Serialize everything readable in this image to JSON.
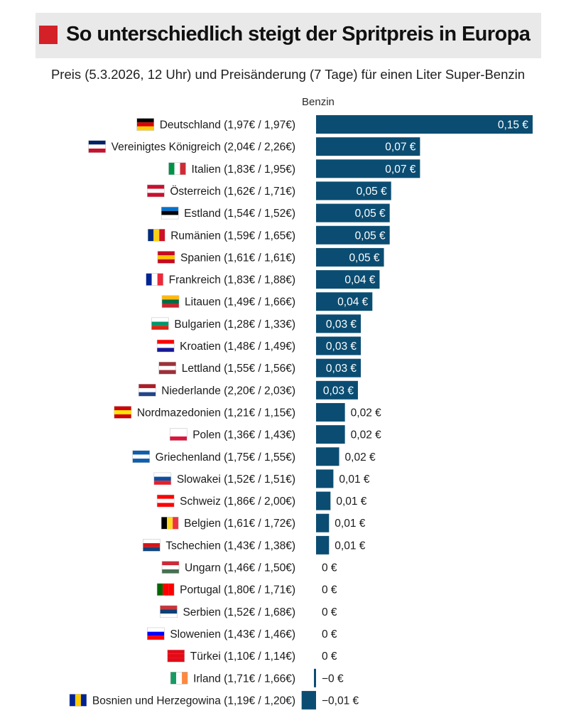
{
  "header": {
    "title": "So unterschiedlich steigt der Spritpreis in Europa",
    "subtitle": "Preis (5.3.2026, 12 Uhr) und Preisänderung (7 Tage) für einen Liter Super-Benzin"
  },
  "colors": {
    "bar": "#0b4d72",
    "accent": "#d42027",
    "band": "#e9e9e9"
  },
  "chart_data": {
    "type": "bar",
    "orientation": "horizontal",
    "title": "So unterschiedlich steigt der Spritpreis in Europa",
    "subtitle": "Preis (5.3.2026, 12 Uhr) und Preisänderung (7 Tage) für einen Liter Super-Benzin",
    "series_label": "Benzin",
    "unit": "€",
    "xlim": [
      -0.01,
      0.15
    ],
    "categories": [
      "Deutschland (1,97€ / 1,97€)",
      "Vereinigtes Königreich (2,04€ / 2,26€)",
      "Italien (1,83€ / 1,95€)",
      "Österreich (1,62€ / 1,71€)",
      "Estland (1,54€ / 1,52€)",
      "Rumänien (1,59€ / 1,65€)",
      "Spanien (1,61€ / 1,61€)",
      "Frankreich (1,83€ / 1,88€)",
      "Litauen (1,49€ / 1,66€)",
      "Bulgarien (1,28€ / 1,33€)",
      "Kroatien (1,48€ / 1,49€)",
      "Lettland (1,55€ / 1,56€)",
      "Niederlande (2,20€ / 2,03€)",
      "Nordmazedonien (1,21€ / 1,15€)",
      "Polen (1,36€ / 1,43€)",
      "Griechenland (1,75€ / 1,55€)",
      "Slowakei (1,52€ / 1,51€)",
      "Schweiz (1,86€ / 2,00€)",
      "Belgien (1,61€ / 1,72€)",
      "Tschechien (1,43€ / 1,38€)",
      "Ungarn (1,46€ / 1,50€)",
      "Portugal (1,80€ / 1,71€)",
      "Serbien (1,52€ / 1,68€)",
      "Slowenien (1,43€ / 1,46€)",
      "Türkei (1,10€ / 1,14€)",
      "Irland (1,71€ / 1,66€)",
      "Bosnien und Herzegowina (1,19€ / 1,20€)"
    ],
    "values": [
      0.15,
      0.072,
      0.072,
      0.052,
      0.051,
      0.051,
      0.047,
      0.044,
      0.039,
      0.031,
      0.031,
      0.031,
      0.029,
      0.02,
      0.02,
      0.016,
      0.012,
      0.01,
      0.009,
      0.009,
      0,
      0,
      0,
      0,
      0,
      -0.001,
      -0.01
    ],
    "value_labels": [
      "0,15 €",
      "0,07 €",
      "0,07 €",
      "0,05 €",
      "0,05 €",
      "0,05 €",
      "0,05 €",
      "0,04 €",
      "0,04 €",
      "0,03 €",
      "0,03 €",
      "0,03 €",
      "0,03 €",
      "0,02 €",
      "0,02 €",
      "0,02 €",
      "0,01 €",
      "0,01 €",
      "0,01 €",
      "0,01 €",
      "0 €",
      "0 €",
      "0 €",
      "0 €",
      "0 €",
      "−0 €",
      "−0,01 €"
    ],
    "flag_icons": [
      "de-flag-icon",
      "gb-flag-icon",
      "it-flag-icon",
      "at-flag-icon",
      "ee-flag-icon",
      "ro-flag-icon",
      "es-flag-icon",
      "fr-flag-icon",
      "lt-flag-icon",
      "bg-flag-icon",
      "hr-flag-icon",
      "lv-flag-icon",
      "nl-flag-icon",
      "mk-flag-icon",
      "pl-flag-icon",
      "gr-flag-icon",
      "sk-flag-icon",
      "ch-flag-icon",
      "be-flag-icon",
      "cz-flag-icon",
      "hu-flag-icon",
      "pt-flag-icon",
      "rs-flag-icon",
      "si-flag-icon",
      "tr-flag-icon",
      "ie-flag-icon",
      "ba-flag-icon"
    ],
    "flag_colors": [
      [
        "#000000",
        "#dd0000",
        "#ffce00"
      ],
      [
        "#012169",
        "#ffffff",
        "#c8102e"
      ],
      [
        "#009246",
        "#ffffff",
        "#ce2b37"
      ],
      [
        "#c8102e",
        "#ffffff",
        "#c8102e"
      ],
      [
        "#0072ce",
        "#000000",
        "#ffffff"
      ],
      [
        "#002b7f",
        "#fcd116",
        "#ce1126"
      ],
      [
        "#c60b1e",
        "#ffc400",
        "#c60b1e"
      ],
      [
        "#002395",
        "#ffffff",
        "#ed2939"
      ],
      [
        "#fdb913",
        "#006a44",
        "#c1272d"
      ],
      [
        "#ffffff",
        "#00966e",
        "#d62612"
      ],
      [
        "#ff0000",
        "#ffffff",
        "#171796"
      ],
      [
        "#9e3039",
        "#ffffff",
        "#9e3039"
      ],
      [
        "#ae1c28",
        "#ffffff",
        "#21468b"
      ],
      [
        "#d20000",
        "#ffe600",
        "#d20000"
      ],
      [
        "#ffffff",
        "#ffffff",
        "#dc143c"
      ],
      [
        "#0d5eaf",
        "#ffffff",
        "#0d5eaf"
      ],
      [
        "#ffffff",
        "#0b4ea2",
        "#ee1c25"
      ],
      [
        "#ff0000",
        "#ffffff",
        "#ff0000"
      ],
      [
        "#000000",
        "#fdda24",
        "#ef3340"
      ],
      [
        "#ffffff",
        "#d7141a",
        "#11457e"
      ],
      [
        "#ce2939",
        "#ffffff",
        "#477050"
      ],
      [
        "#006600",
        "#ff0000",
        "#ff0000"
      ],
      [
        "#c6363c",
        "#0c4076",
        "#ffffff"
      ],
      [
        "#ffffff",
        "#0000ff",
        "#ff0000"
      ],
      [
        "#e30a17",
        "#e30a17",
        "#e30a17"
      ],
      [
        "#169b62",
        "#ffffff",
        "#ff883e"
      ],
      [
        "#002395",
        "#fecb00",
        "#002395"
      ]
    ],
    "flag_orientation": [
      "h",
      "h",
      "v",
      "h",
      "h",
      "v",
      "h",
      "v",
      "h",
      "h",
      "h",
      "h",
      "h",
      "h",
      "h",
      "h",
      "h",
      "h",
      "v",
      "h",
      "h",
      "v",
      "h",
      "h",
      "h",
      "v",
      "v"
    ]
  }
}
